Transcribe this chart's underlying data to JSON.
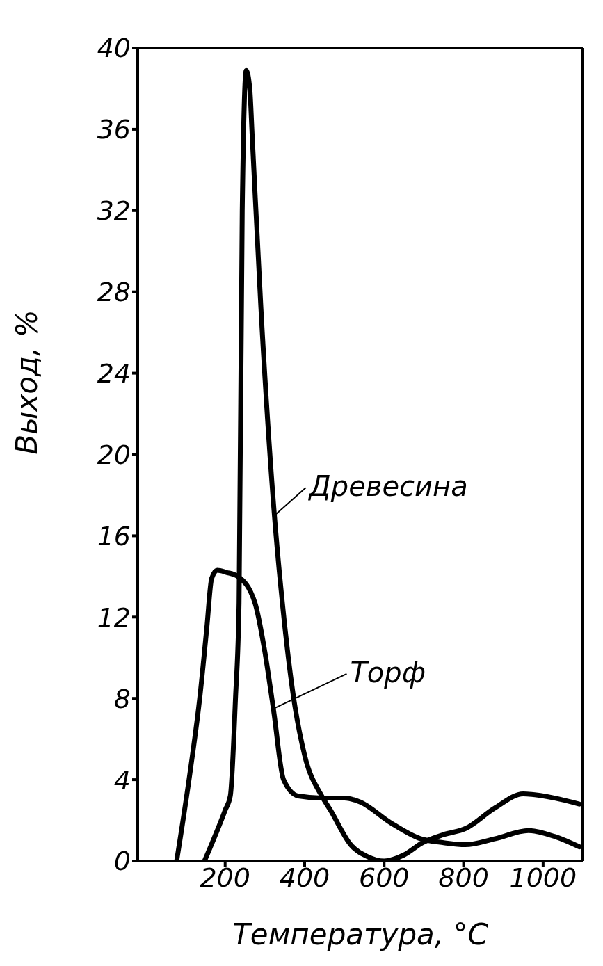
{
  "chart_data": {
    "type": "line",
    "xlabel": "Температура, °С",
    "ylabel": "Выход, %",
    "xlim": [
      -20,
      1100
    ],
    "xticks": [
      200,
      400,
      600,
      800,
      1000
    ],
    "ylim": [
      0,
      40
    ],
    "yticks": [
      0,
      4,
      8,
      12,
      16,
      20,
      24,
      28,
      32,
      36,
      40
    ],
    "grid": false,
    "legend": false,
    "marker": "none",
    "line_style": "solid",
    "series": [
      {
        "color": "#000000",
        "x": [
          148,
          200,
          213,
          226,
          235,
          243,
          253,
          262,
          268,
          290,
          324,
          345,
          371,
          400,
          443,
          465,
          516,
          560,
          600,
          650,
          697,
          750,
          805,
          878,
          950,
          1028,
          1091
        ],
        "values": [
          0,
          2.5,
          3.2,
          8,
          12.7,
          32,
          38.9,
          38,
          35.7,
          27.2,
          17,
          12.5,
          8.2,
          5.2,
          3.2,
          2.5,
          0.8,
          0.2,
          0,
          0.3,
          0.9,
          1.3,
          1.6,
          2.6,
          3.3,
          3.1,
          2.8
        ]
      },
      {
        "color": "#000000",
        "x": [
          78,
          112,
          136,
          154,
          166,
          180,
          203,
          232,
          275,
          299,
          322,
          347,
          384,
          443,
          500,
          540,
          615,
          691,
          750,
          804,
          880,
          963,
          1030,
          1091
        ],
        "values": [
          0,
          4.4,
          8,
          11.5,
          13.9,
          14.3,
          14.2,
          14,
          12.7,
          10.4,
          7.4,
          4,
          3.2,
          3.1,
          3.1,
          2.9,
          1.9,
          1.1,
          0.9,
          0.8,
          1.1,
          1.5,
          1.2,
          0.7
        ]
      }
    ],
    "annotations": [
      {
        "text": "Древесина",
        "x": 324,
        "y": 17
      },
      {
        "text": "Торф",
        "x": 322,
        "y": 7.5
      }
    ]
  }
}
